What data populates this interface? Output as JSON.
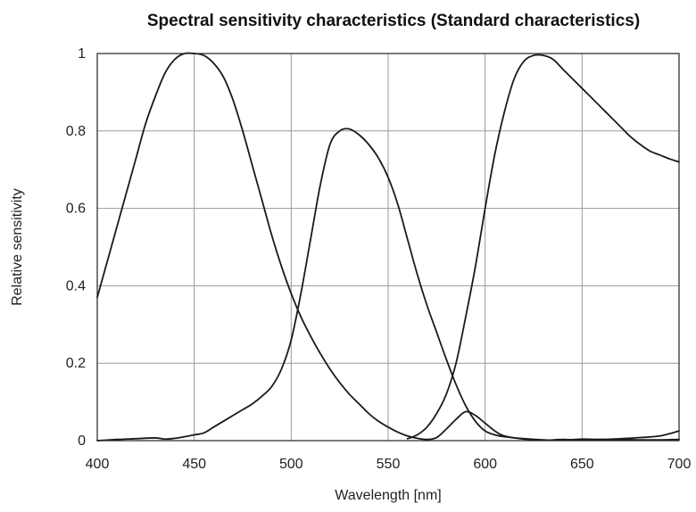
{
  "chart_data": {
    "type": "line",
    "title": "Spectral sensitivity characteristics (Standard characteristics)",
    "xlabel": "Wavelength [nm]",
    "ylabel": "Relative sensitivity",
    "xlim": [
      400,
      700
    ],
    "ylim": [
      0,
      1
    ],
    "x_ticks": [
      400,
      450,
      500,
      550,
      600,
      650,
      700
    ],
    "y_ticks": [
      0,
      0.2,
      0.4,
      0.6,
      0.8,
      1
    ],
    "y_tick_labels": [
      "0",
      "0.2",
      "0.4",
      "0.6",
      "0.8",
      "1"
    ],
    "grid": true,
    "legend": false,
    "line_color": "#1a1a1a",
    "series": [
      {
        "x": [
          400,
          405,
          410,
          415,
          420,
          425,
          430,
          435,
          440,
          445,
          450,
          455,
          460,
          465,
          470,
          475,
          480,
          485,
          490,
          495,
          500,
          505,
          510,
          515,
          520,
          525,
          530,
          535,
          540,
          545,
          550,
          555,
          560,
          565,
          570,
          575,
          580,
          585,
          590,
          595,
          600,
          605,
          610,
          620,
          630,
          640,
          650,
          660,
          670,
          680,
          690,
          700
        ],
        "values": [
          0.37,
          0.46,
          0.55,
          0.64,
          0.73,
          0.82,
          0.89,
          0.95,
          0.985,
          1.0,
          1.0,
          0.995,
          0.975,
          0.94,
          0.88,
          0.8,
          0.71,
          0.62,
          0.53,
          0.45,
          0.38,
          0.32,
          0.27,
          0.225,
          0.185,
          0.15,
          0.12,
          0.095,
          0.07,
          0.05,
          0.035,
          0.022,
          0.012,
          0.006,
          0.003,
          0.008,
          0.03,
          0.055,
          0.075,
          0.065,
          0.045,
          0.025,
          0.012,
          0.004,
          0.001,
          0.003,
          0.002,
          0.003,
          0.003,
          0.002,
          0.002,
          0.003
        ]
      },
      {
        "x": [
          400,
          410,
          420,
          430,
          435,
          440,
          445,
          450,
          455,
          460,
          465,
          470,
          475,
          480,
          485,
          490,
          495,
          500,
          505,
          510,
          515,
          520,
          525,
          530,
          535,
          540,
          545,
          550,
          555,
          560,
          565,
          570,
          575,
          580,
          585,
          590,
          595,
          600,
          605,
          610,
          620,
          630,
          640,
          650,
          660,
          670,
          680,
          690,
          700
        ],
        "values": [
          0.0,
          0.003,
          0.005,
          0.007,
          0.004,
          0.006,
          0.01,
          0.015,
          0.02,
          0.035,
          0.05,
          0.065,
          0.08,
          0.095,
          0.115,
          0.14,
          0.185,
          0.26,
          0.38,
          0.52,
          0.66,
          0.765,
          0.8,
          0.805,
          0.79,
          0.765,
          0.73,
          0.68,
          0.61,
          0.52,
          0.43,
          0.35,
          0.28,
          0.21,
          0.145,
          0.09,
          0.05,
          0.025,
          0.015,
          0.01,
          0.005,
          0.002,
          0.001,
          0.004,
          0.003,
          0.005,
          0.008,
          0.012,
          0.025
        ]
      },
      {
        "x": [
          560,
          565,
          570,
          575,
          580,
          585,
          590,
          595,
          600,
          605,
          610,
          615,
          620,
          625,
          630,
          635,
          640,
          645,
          650,
          655,
          660,
          665,
          670,
          675,
          680,
          685,
          690,
          695,
          700
        ],
        "values": [
          0.005,
          0.015,
          0.035,
          0.07,
          0.12,
          0.2,
          0.32,
          0.45,
          0.6,
          0.74,
          0.85,
          0.935,
          0.98,
          0.995,
          0.995,
          0.985,
          0.96,
          0.935,
          0.91,
          0.885,
          0.86,
          0.835,
          0.81,
          0.785,
          0.765,
          0.748,
          0.738,
          0.728,
          0.72
        ]
      }
    ]
  }
}
